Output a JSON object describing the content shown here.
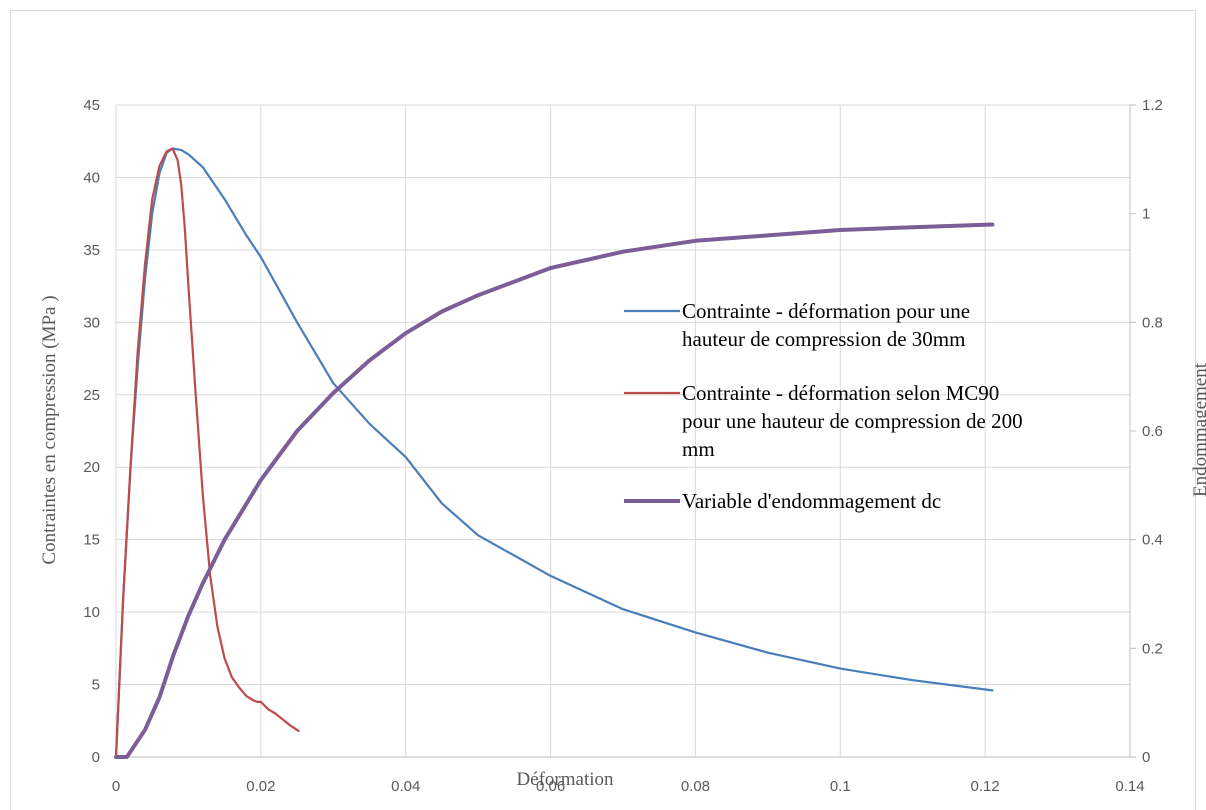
{
  "chart_data": {
    "type": "line",
    "xlabel": "Déformation",
    "ylabel": "Contraintes en compression (MPa )",
    "y2label": "Endommagement",
    "xlim": [
      0,
      0.14
    ],
    "ylim": [
      0,
      45
    ],
    "y2lim": [
      0,
      1.2
    ],
    "x_ticks": [
      "0",
      "0.02",
      "0.04",
      "0.06",
      "0.08",
      "0.1",
      "0.12",
      "0.14"
    ],
    "y_ticks": [
      "0",
      "5",
      "10",
      "15",
      "20",
      "25",
      "30",
      "35",
      "40",
      "45"
    ],
    "y2_ticks": [
      "0",
      "0.2",
      "0.4",
      "0.6",
      "0.8",
      "1",
      "1.2"
    ],
    "grid": true,
    "legend_position": "right",
    "series": [
      {
        "name": "Contrainte - déformation pour une hauteur de compression de 30mm",
        "legend_lines": [
          "Contrainte - déformation pour une",
          "hauteur de compression de 30mm"
        ],
        "color": "#4a7ebb",
        "axis": "left",
        "x": [
          0,
          0.001,
          0.002,
          0.003,
          0.004,
          0.005,
          0.006,
          0.007,
          0.0078,
          0.009,
          0.01,
          0.012,
          0.015,
          0.018,
          0.02,
          0.025,
          0.03,
          0.035,
          0.04,
          0.045,
          0.05,
          0.06,
          0.07,
          0.08,
          0.09,
          0.1,
          0.11,
          0.121
        ],
        "y": [
          0,
          11,
          20,
          27,
          33,
          37.5,
          40.3,
          41.7,
          42,
          41.9,
          41.6,
          40.7,
          38.5,
          36,
          34.5,
          30,
          25.8,
          23,
          20.7,
          17.5,
          15.3,
          12.5,
          10.2,
          8.6,
          7.2,
          6.1,
          5.3,
          4.6
        ]
      },
      {
        "name": "Contrainte - déformation selon MC90 pour une hauteur de compression de 200 mm",
        "legend_lines": [
          "Contrainte - déformation selon MC90",
          "pour une hauteur de compression de 200",
          "mm"
        ],
        "color": "#be4b48",
        "axis": "left",
        "x": [
          0,
          0.001,
          0.002,
          0.003,
          0.004,
          0.005,
          0.006,
          0.007,
          0.0078,
          0.0085,
          0.009,
          0.0095,
          0.01,
          0.011,
          0.012,
          0.013,
          0.014,
          0.015,
          0.016,
          0.017,
          0.018,
          0.019,
          0.0195,
          0.02,
          0.021,
          0.022,
          0.023,
          0.024,
          0.0252
        ],
        "y": [
          0,
          11,
          20,
          28,
          34,
          38.5,
          40.8,
          41.8,
          42,
          41.2,
          39.5,
          36.5,
          32.5,
          25,
          18,
          12.5,
          9,
          6.8,
          5.5,
          4.8,
          4.2,
          3.9,
          3.8,
          3.8,
          3.3,
          3.0,
          2.6,
          2.2,
          1.8
        ]
      },
      {
        "name": "Variable d'endommagement dc",
        "legend_lines": [
          "Variable d'endommagement dc"
        ],
        "color": "#7b5d98",
        "axis": "right",
        "x": [
          0,
          0.0015,
          0.002,
          0.004,
          0.006,
          0.008,
          0.01,
          0.012,
          0.015,
          0.02,
          0.025,
          0.03,
          0.035,
          0.04,
          0.045,
          0.05,
          0.06,
          0.07,
          0.08,
          0.09,
          0.1,
          0.11,
          0.121
        ],
        "y": [
          0,
          0,
          0.01,
          0.05,
          0.11,
          0.19,
          0.26,
          0.32,
          0.4,
          0.51,
          0.6,
          0.67,
          0.73,
          0.78,
          0.82,
          0.85,
          0.9,
          0.93,
          0.95,
          0.96,
          0.97,
          0.975,
          0.98
        ]
      }
    ]
  }
}
